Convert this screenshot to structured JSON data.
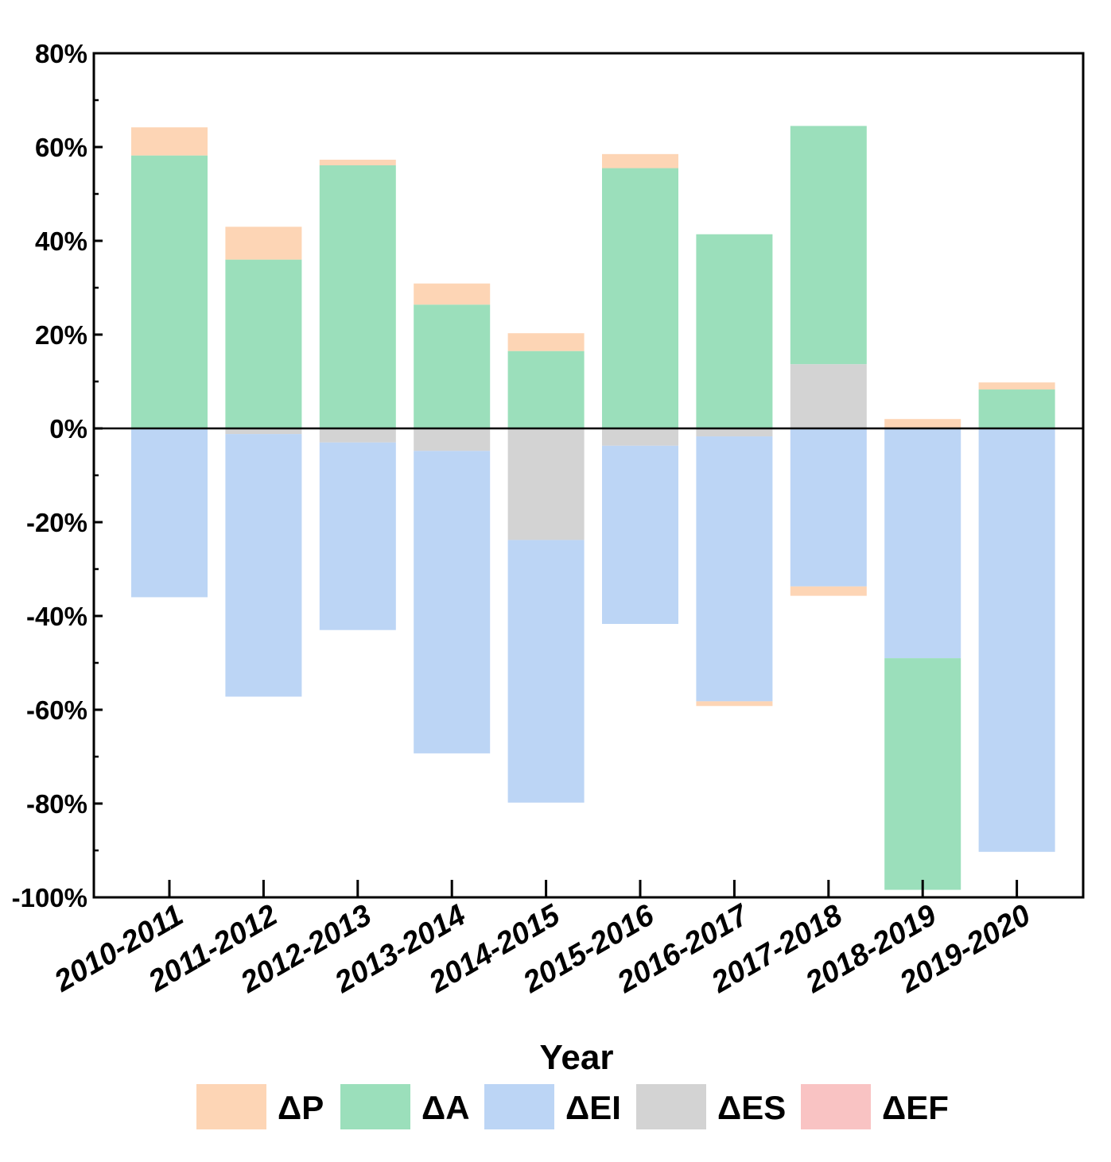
{
  "chart_data": {
    "type": "bar",
    "stacked": true,
    "title": "",
    "xlabel": "Year",
    "ylabel": "",
    "ylim": [
      -100,
      80
    ],
    "y_ticks": [
      80,
      60,
      40,
      20,
      0,
      -20,
      -40,
      -60,
      -80,
      -100
    ],
    "y_tick_labels": [
      "80%",
      "60%",
      "40%",
      "20%",
      "0%",
      "-20%",
      "-40%",
      "-60%",
      "-80%",
      "-100%"
    ],
    "categories": [
      "2010-2011",
      "2011-2012",
      "2012-2013",
      "2013-2014",
      "2014-2015",
      "2015-2016",
      "2016-2017",
      "2017-2018",
      "2018-2019",
      "2019-2020"
    ],
    "legend_position": "bottom",
    "series": [
      {
        "name": "ΔP",
        "color": "#FDD5B5",
        "values": [
          6.0,
          7.0,
          1.2,
          4.5,
          3.8,
          3.0,
          -1.0,
          -2.0,
          2.0,
          1.5
        ]
      },
      {
        "name": "ΔA",
        "color": "#9BDFBB",
        "values": [
          58.2,
          36.0,
          56.1,
          26.4,
          16.5,
          55.5,
          41.4,
          50.8,
          -49.4,
          8.3
        ]
      },
      {
        "name": "ΔEI",
        "color": "#BCD5F5",
        "values": [
          -36.0,
          -56.0,
          -40.0,
          -64.5,
          -56.0,
          -38.0,
          -56.5,
          -33.7,
          -49.0,
          -90.3
        ]
      },
      {
        "name": "ΔES",
        "color": "#D3D3D3",
        "values": [
          0.0,
          -1.2,
          -3.0,
          -4.8,
          -23.8,
          -3.7,
          -1.7,
          13.7,
          0.0,
          0.0
        ]
      },
      {
        "name": "ΔEF",
        "color": "#F9C3C3",
        "values": [
          0,
          0,
          0,
          0,
          0,
          0,
          0,
          0,
          0,
          0
        ]
      }
    ]
  }
}
